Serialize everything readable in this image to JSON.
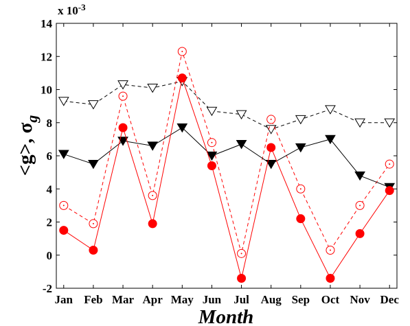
{
  "chart_data": {
    "type": "line",
    "title": "",
    "xlabel": "Month",
    "ylabel": "<g>, σ",
    "ylabel_subscript": "g",
    "y_multiplier": "x 10",
    "y_multiplier_exponent": "-3",
    "categories": [
      "Jan",
      "Feb",
      "Mar",
      "Apr",
      "May",
      "Jun",
      "Jul",
      "Aug",
      "Sep",
      "Oct",
      "Nov",
      "Dec"
    ],
    "ylim": [
      -2,
      14
    ],
    "yticks": [
      -2,
      0,
      2,
      4,
      6,
      8,
      10,
      12,
      14
    ],
    "grid": false,
    "legend": "none",
    "series": [
      {
        "marker": "filled-triangle-down",
        "line": "solid",
        "color": "#000000",
        "values": [
          6.1,
          5.5,
          6.9,
          6.6,
          7.7,
          6.0,
          6.7,
          5.5,
          6.5,
          7.0,
          4.8,
          4.1
        ]
      },
      {
        "marker": "open-triangle-down",
        "line": "dashed",
        "color": "#000000",
        "values": [
          9.3,
          9.1,
          10.3,
          10.1,
          10.5,
          8.7,
          8.5,
          7.6,
          8.2,
          8.8,
          8.0,
          8.0
        ]
      },
      {
        "marker": "filled-circle",
        "line": "solid",
        "color": "#ff0000",
        "values": [
          1.5,
          0.3,
          7.7,
          1.9,
          10.7,
          5.4,
          -1.4,
          6.5,
          2.2,
          -1.4,
          1.3,
          3.9
        ]
      },
      {
        "marker": "open-circle",
        "line": "dashed",
        "color": "#ff0000",
        "values": [
          3.0,
          1.9,
          9.6,
          3.6,
          12.3,
          6.8,
          0.1,
          8.2,
          4.0,
          0.3,
          3.0,
          5.5
        ]
      }
    ]
  }
}
